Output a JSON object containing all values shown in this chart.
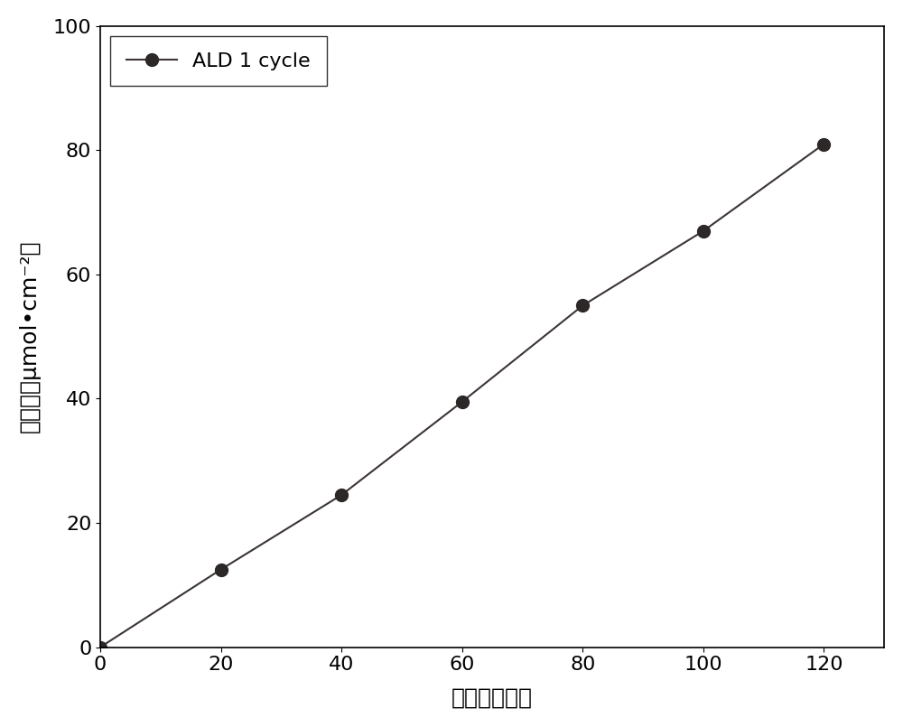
{
  "x": [
    0,
    20,
    40,
    60,
    80,
    100,
    120
  ],
  "y": [
    0,
    12.5,
    24.5,
    39.5,
    55,
    67,
    81
  ],
  "line_color": "#3d3535",
  "marker_color": "#2d2828",
  "marker_size": 10,
  "line_width": 1.5,
  "legend_label": "ALD 1 cycle",
  "xlabel": "时间（分钟）",
  "ylabel": "产氢量（μmol•cm⁻²）",
  "xlim": [
    0,
    130
  ],
  "ylim": [
    0,
    100
  ],
  "xticks": [
    0,
    20,
    40,
    60,
    80,
    100,
    120
  ],
  "yticks": [
    0,
    20,
    40,
    60,
    80,
    100
  ],
  "background_color": "#ffffff",
  "tick_fontsize": 16,
  "label_fontsize": 18,
  "legend_fontsize": 16
}
